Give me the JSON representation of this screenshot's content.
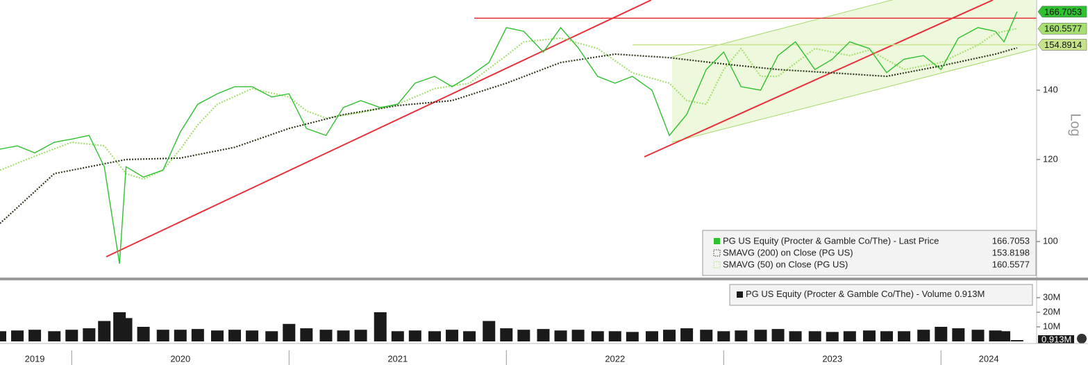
{
  "chart_data": [
    {
      "type": "line",
      "log_scale": true,
      "ylabel": "Log",
      "xlim": [
        2019.67,
        2024.44
      ],
      "ylim": [
        92.3,
        171.1
      ],
      "yticks": [
        100,
        120,
        140
      ],
      "series": [
        {
          "name": "PG US Equity (Procter & Gamble Co/The) - Last Price",
          "color": "#2fc12f",
          "style": "solid",
          "x": [
            2019.67,
            2019.75,
            2019.83,
            2019.92,
            2020.0,
            2020.08,
            2020.15,
            2020.22,
            2020.25,
            2020.33,
            2020.42,
            2020.5,
            2020.58,
            2020.67,
            2020.75,
            2020.83,
            2020.92,
            2021.0,
            2021.08,
            2021.17,
            2021.25,
            2021.33,
            2021.42,
            2021.5,
            2021.58,
            2021.67,
            2021.75,
            2021.83,
            2021.92,
            2022.0,
            2022.08,
            2022.17,
            2022.25,
            2022.33,
            2022.42,
            2022.5,
            2022.58,
            2022.67,
            2022.75,
            2022.83,
            2022.92,
            2023.0,
            2023.08,
            2023.17,
            2023.25,
            2023.33,
            2023.42,
            2023.5,
            2023.58,
            2023.67,
            2023.75,
            2023.83,
            2023.92,
            2024.0,
            2024.08,
            2024.17,
            2024.25,
            2024.29,
            2024.35
          ],
          "values": [
            122.8,
            123.7,
            121.8,
            124.7,
            125.6,
            126.6,
            118.1,
            95.2,
            118.1,
            115.4,
            117.2,
            127.6,
            135.7,
            138.9,
            141.1,
            141.1,
            137.9,
            138.9,
            128.6,
            126.6,
            134.7,
            136.8,
            134.7,
            135.7,
            142.2,
            144.4,
            141.1,
            144.4,
            148.9,
            160.9,
            159.6,
            152.4,
            160.9,
            153.9,
            144.4,
            142.2,
            144.4,
            140,
            126.6,
            132.7,
            146.6,
            152.4,
            141.1,
            140,
            151.2,
            155.9,
            146.6,
            150,
            155.9,
            153.6,
            145.6,
            150,
            151.2,
            146.6,
            157.2,
            160.9,
            159.6,
            155.9,
            166.7053
          ]
        },
        {
          "name": "SMAVG (200)  on Close (PG US)",
          "color": "#2d3a1e",
          "style": "dotted",
          "x": [
            2019.67,
            2019.92,
            2020.25,
            2020.5,
            2020.75,
            2021.0,
            2021.25,
            2021.5,
            2021.75,
            2022.0,
            2022.25,
            2022.5,
            2022.75,
            2023.0,
            2023.25,
            2023.5,
            2023.75,
            2024.0,
            2024.25,
            2024.35
          ],
          "values": [
            104.1,
            116.3,
            120.0,
            120.4,
            123.3,
            128.6,
            132.6,
            135.3,
            136.8,
            142.2,
            148.9,
            151.7,
            150.5,
            148.4,
            146.6,
            145.5,
            144.4,
            147.8,
            151.7,
            153.8198
          ]
        },
        {
          "name": "SMAVG (50)  on Close (PG US)",
          "color": "#a6e070",
          "style": "dotted",
          "x": [
            2019.67,
            2019.83,
            2020.0,
            2020.15,
            2020.25,
            2020.33,
            2020.42,
            2020.5,
            2020.58,
            2020.67,
            2020.83,
            2021.0,
            2021.08,
            2021.17,
            2021.33,
            2021.5,
            2021.67,
            2021.83,
            2022.0,
            2022.08,
            2022.25,
            2022.42,
            2022.58,
            2022.75,
            2022.83,
            2022.92,
            2023.0,
            2023.08,
            2023.17,
            2023.25,
            2023.42,
            2023.58,
            2023.67,
            2023.83,
            2024.0,
            2024.17,
            2024.25,
            2024.35
          ],
          "values": [
            117.2,
            120.9,
            124.7,
            123.7,
            116.3,
            114.9,
            117.2,
            122.8,
            129.6,
            135.7,
            140.5,
            137.9,
            133.7,
            131.6,
            133.2,
            135.7,
            140.5,
            142.2,
            151.2,
            155.9,
            157.2,
            153.6,
            145.5,
            142.2,
            136.8,
            135.7,
            146.6,
            153.6,
            144.4,
            144.4,
            153.6,
            151.2,
            153.1,
            146.6,
            148.9,
            154.8,
            158.9,
            160.5577
          ]
        }
      ],
      "levels": [
        {
          "value": 164.3,
          "color": "#e8303a"
        },
        {
          "value": 154.8914,
          "color": "#c6e389"
        }
      ]
    },
    {
      "type": "bar",
      "xlim": [
        2019.67,
        2024.44
      ],
      "ylim": [
        0,
        41.4
      ],
      "yticks": [
        {
          "value": 10,
          "label": "10M"
        },
        {
          "value": 20,
          "label": "20M"
        },
        {
          "value": 30,
          "label": "30M"
        }
      ],
      "xticks": [
        {
          "value": 2019.83,
          "label": "2019"
        },
        {
          "value": 2020.5,
          "label": "2020"
        },
        {
          "value": 2021.5,
          "label": "2021"
        },
        {
          "value": 2022.5,
          "label": "2022"
        },
        {
          "value": 2023.5,
          "label": "2023"
        },
        {
          "value": 2024.22,
          "label": "2024"
        }
      ],
      "year_starts": [
        2020,
        2021,
        2022,
        2023,
        2024
      ],
      "series": [
        {
          "name": "PG US Equity (Procter & Gamble Co/The) - Volume",
          "color": "#1a1a1a",
          "last_label": "0.913M",
          "x": [
            2019.67,
            2019.75,
            2019.83,
            2019.92,
            2020.0,
            2020.08,
            2020.15,
            2020.22,
            2020.25,
            2020.33,
            2020.42,
            2020.5,
            2020.58,
            2020.67,
            2020.75,
            2020.83,
            2020.92,
            2021.0,
            2021.08,
            2021.17,
            2021.25,
            2021.33,
            2021.42,
            2021.5,
            2021.58,
            2021.67,
            2021.75,
            2021.83,
            2021.92,
            2022.0,
            2022.08,
            2022.17,
            2022.25,
            2022.33,
            2022.42,
            2022.5,
            2022.58,
            2022.67,
            2022.75,
            2022.83,
            2022.92,
            2023.0,
            2023.08,
            2023.17,
            2023.25,
            2023.33,
            2023.42,
            2023.5,
            2023.58,
            2023.67,
            2023.75,
            2023.83,
            2023.92,
            2024.0,
            2024.08,
            2024.17,
            2024.25,
            2024.29,
            2024.35
          ],
          "values": [
            7,
            7.5,
            8,
            7,
            8,
            9,
            14,
            20,
            16,
            10,
            8,
            8,
            8.5,
            7.5,
            8,
            7.5,
            7,
            12,
            9,
            8,
            7.5,
            8,
            20,
            7,
            7.5,
            7,
            8,
            7,
            14,
            9,
            8,
            8.5,
            7.5,
            8,
            7,
            7,
            6.5,
            7,
            8,
            9,
            8,
            7,
            7.5,
            8,
            8.5,
            7,
            7,
            6.5,
            7,
            7.5,
            7,
            7,
            8,
            10,
            9,
            8,
            7.5,
            7,
            0.913
          ]
        }
      ]
    }
  ]
}
